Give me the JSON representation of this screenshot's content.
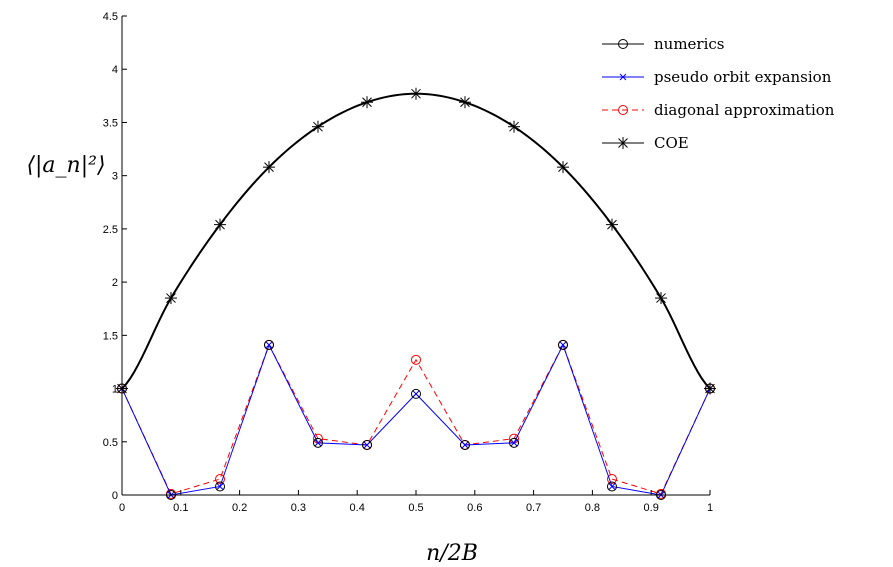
{
  "chart_data": {
    "type": "line",
    "xlabel": "n/2B",
    "ylabel": "⟨|a_n|²⟩",
    "xlim": [
      0,
      1
    ],
    "ylim": [
      0,
      4.5
    ],
    "xticks": [
      "0",
      "0.1",
      "0.2",
      "0.3",
      "0.4",
      "0.5",
      "0.6",
      "0.7",
      "0.8",
      "0.9",
      "1"
    ],
    "yticks": [
      "0",
      "0.5",
      "1",
      "1.5",
      "2",
      "2.5",
      "3",
      "3.5",
      "4",
      "4.5"
    ],
    "legend_position": "top-right",
    "x": [
      0,
      0.0833,
      0.1667,
      0.25,
      0.3333,
      0.4167,
      0.5,
      0.5833,
      0.6667,
      0.75,
      0.8333,
      0.9167,
      1
    ],
    "series": [
      {
        "name": "numerics",
        "color": "#000000",
        "marker": "circle",
        "line": "none",
        "values": [
          1.0,
          0.0,
          0.08,
          1.41,
          0.49,
          0.47,
          0.95,
          0.47,
          0.49,
          1.41,
          0.08,
          0.0,
          1.0
        ]
      },
      {
        "name": "pseudo orbit expansion",
        "color": "#0000ff",
        "marker": "x",
        "line": "solid",
        "values": [
          1.0,
          0.0,
          0.08,
          1.41,
          0.49,
          0.47,
          0.95,
          0.47,
          0.49,
          1.41,
          0.08,
          0.0,
          1.0
        ]
      },
      {
        "name": "diagonal approximation",
        "color": "#ff0000",
        "marker": "circle",
        "line": "dashed",
        "values": [
          1.0,
          0.01,
          0.15,
          1.41,
          0.53,
          0.47,
          1.27,
          0.47,
          0.53,
          1.41,
          0.15,
          0.01,
          1.0
        ]
      },
      {
        "name": "COE",
        "color": "#000000",
        "marker": "asterisk",
        "line": "solid",
        "values": [
          1.0,
          1.85,
          2.54,
          3.08,
          3.46,
          3.69,
          3.77,
          3.69,
          3.46,
          3.08,
          2.54,
          1.85,
          1.0
        ]
      }
    ]
  }
}
